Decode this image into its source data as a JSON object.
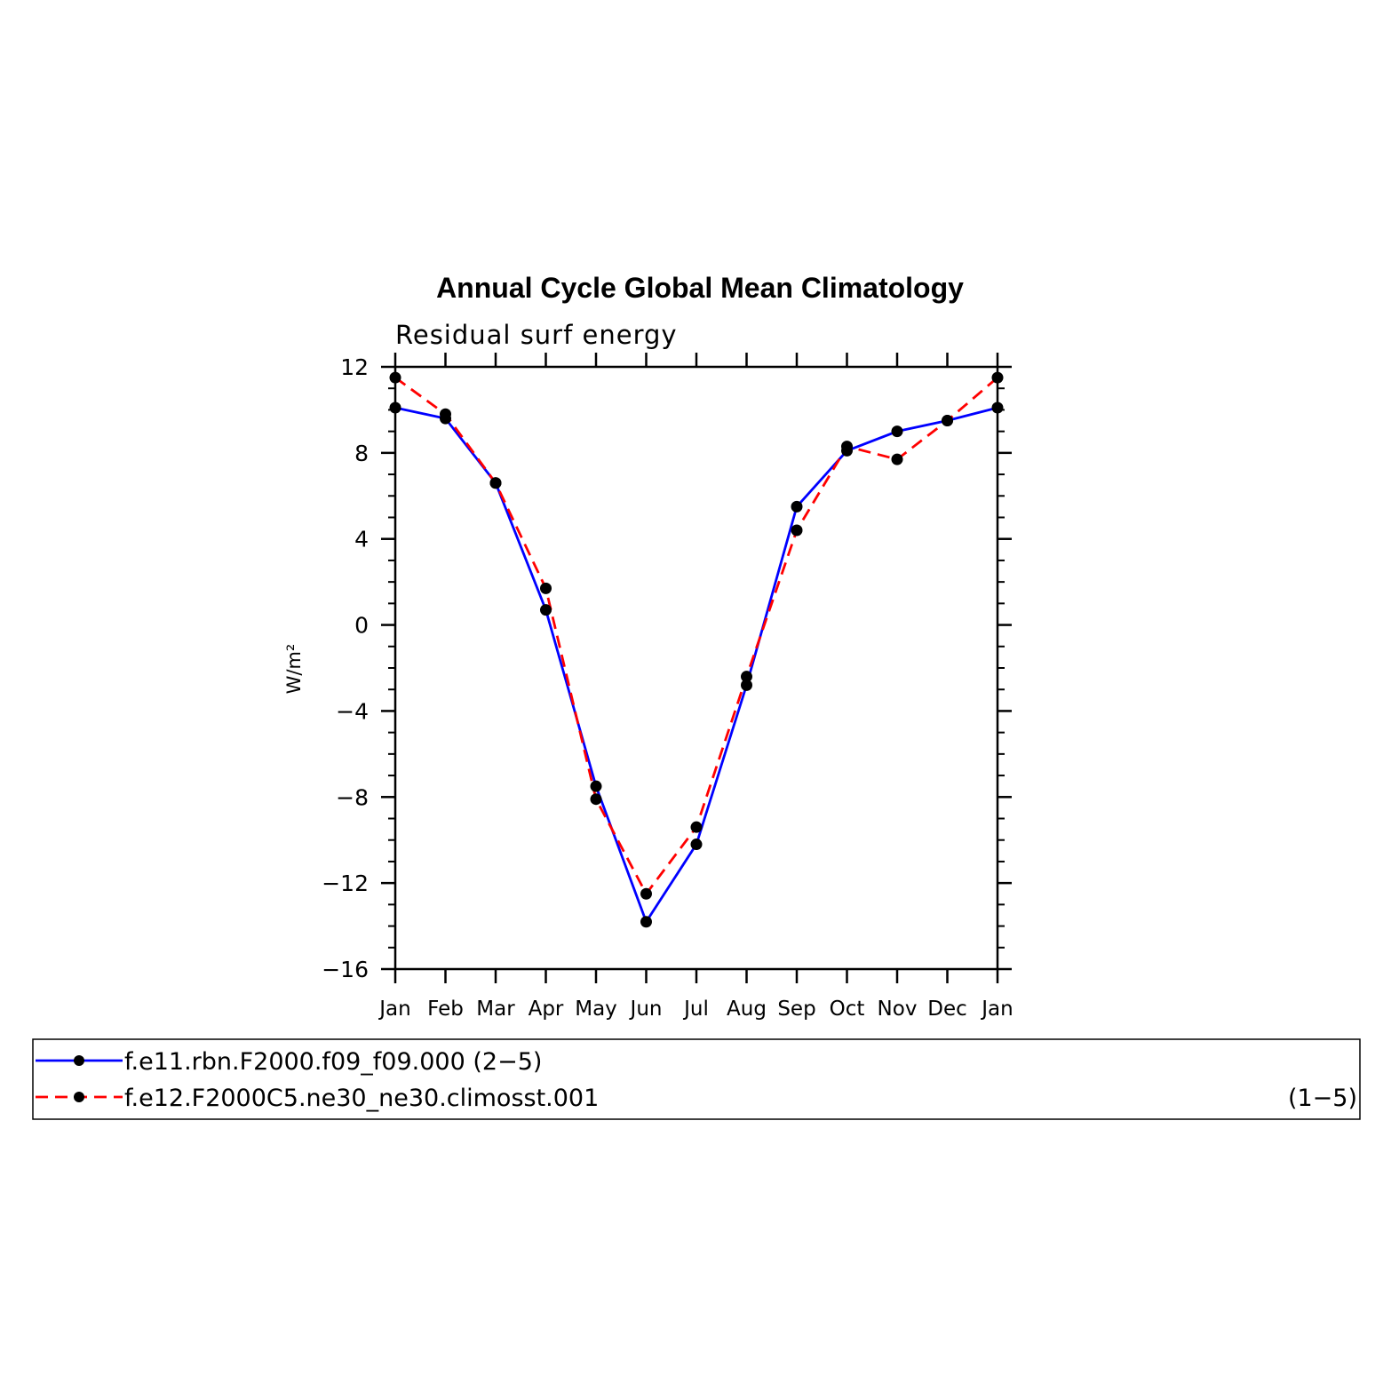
{
  "chart_data": {
    "type": "line",
    "title": "Annual Cycle Global Mean Climatology",
    "subtitle": "Residual surf energy",
    "ylabel": "W/m²",
    "xlabel": "",
    "categories": [
      "Jan",
      "Feb",
      "Mar",
      "Apr",
      "May",
      "Jun",
      "Jul",
      "Aug",
      "Sep",
      "Oct",
      "Nov",
      "Dec",
      "Jan"
    ],
    "ylim": [
      -16,
      12
    ],
    "yticks": [
      12,
      8,
      4,
      0,
      -4,
      -8,
      -12,
      -16
    ],
    "ytick_labels": [
      "12",
      "8",
      "4",
      "0",
      "−4",
      "−8",
      "−12",
      "−16"
    ],
    "series": [
      {
        "name": "f.e11.rbn.F2000.f09_f09.000 (2−5)",
        "suffix": "",
        "color": "#0000ff",
        "dash": "solid",
        "values": [
          10.1,
          9.6,
          6.6,
          0.7,
          -7.5,
          -13.8,
          -10.2,
          -2.8,
          5.5,
          8.1,
          9.0,
          9.5,
          10.1
        ]
      },
      {
        "name": "f.e12.F2000C5.ne30_ne30.climosst.001",
        "suffix": "(1−5)",
        "color": "#ff0000",
        "dash": "dashed",
        "values": [
          11.5,
          9.8,
          6.6,
          1.7,
          -8.1,
          -12.5,
          -9.4,
          -2.4,
          4.4,
          8.3,
          7.7,
          9.5,
          11.5
        ]
      }
    ],
    "marker_color": "#000000",
    "grid": false,
    "legend_position": "bottom"
  }
}
